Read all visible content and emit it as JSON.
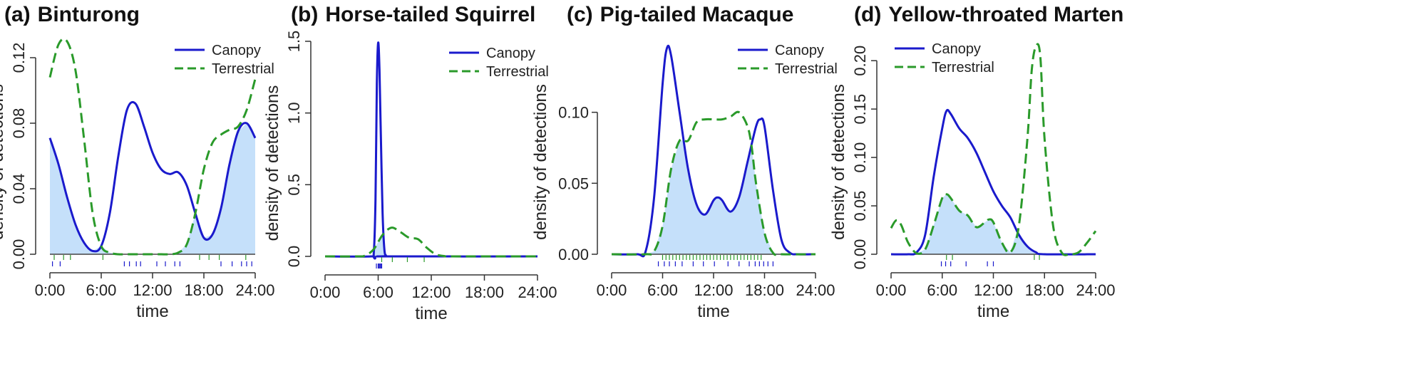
{
  "colors": {
    "canopy": "#1a1acc",
    "terrestrial": "#2a9a2a",
    "overlap": "#c5e0fa",
    "axis": "#333333",
    "baseline": "#444444"
  },
  "chart_data": [
    {
      "type": "line",
      "panel": "(a)",
      "title": "Binturong",
      "xlabel": "time",
      "ylabel": "density of detections",
      "xlim": [
        0,
        24
      ],
      "ylim": [
        0,
        0.13
      ],
      "x_ticks": [
        0,
        6,
        12,
        18,
        24
      ],
      "x_tick_labels": [
        "0:00",
        "6:00",
        "12:00",
        "18:00",
        "24:00"
      ],
      "y_ticks": [
        0,
        0.04,
        0.08,
        0.12
      ],
      "y_tick_labels": [
        "0.00",
        "0.04",
        "0.08",
        "0.12"
      ],
      "y_tick_rotated": true,
      "shade_overlap": true,
      "legend": [
        "Canopy",
        "Terrestrial"
      ],
      "series": [
        {
          "name": "Canopy",
          "style": "solid",
          "x": [
            0,
            1,
            2,
            3,
            4,
            5,
            6,
            7,
            8,
            9,
            10,
            11,
            12,
            13,
            14,
            15,
            16,
            17,
            18,
            19,
            20,
            21,
            22,
            23,
            24
          ],
          "y": [
            0.071,
            0.055,
            0.035,
            0.018,
            0.007,
            0.002,
            0.005,
            0.025,
            0.06,
            0.088,
            0.092,
            0.078,
            0.062,
            0.052,
            0.049,
            0.05,
            0.042,
            0.025,
            0.01,
            0.012,
            0.028,
            0.055,
            0.075,
            0.08,
            0.071
          ]
        },
        {
          "name": "Terrestrial",
          "style": "dashed",
          "x": [
            0,
            1,
            2,
            3,
            4,
            5,
            6,
            7,
            8,
            9,
            10,
            11,
            12,
            13,
            14,
            15,
            16,
            17,
            18,
            19,
            20,
            21,
            22,
            23,
            24
          ],
          "y": [
            0.108,
            0.128,
            0.13,
            0.112,
            0.07,
            0.025,
            0.005,
            0.001,
            0.0,
            0.0,
            0.0,
            0.0,
            0.0,
            0.0,
            0.0,
            0.001,
            0.006,
            0.025,
            0.052,
            0.068,
            0.073,
            0.076,
            0.078,
            0.088,
            0.107
          ]
        }
      ],
      "rug": [
        {
          "series": "Canopy",
          "x": [
            0.3,
            1.2,
            8.7,
            9.3,
            10.1,
            10.6,
            12.5,
            13.5,
            14.6,
            15.2,
            20.0,
            21.3,
            22.4,
            23.0,
            23.6
          ]
        },
        {
          "series": "Terrestrial",
          "x": [
            0.5,
            1.6,
            2.4,
            6.2,
            17.5,
            18.6,
            19.8,
            22.9
          ]
        }
      ]
    },
    {
      "type": "line",
      "panel": "(b)",
      "title": "Horse-tailed Squirrel",
      "xlabel": "time",
      "ylabel": "density of detections",
      "xlim": [
        0,
        24
      ],
      "ylim": [
        0,
        1.5
      ],
      "x_ticks": [
        0,
        6,
        12,
        18,
        24
      ],
      "x_tick_labels": [
        "0:00",
        "6:00",
        "12:00",
        "18:00",
        "24:00"
      ],
      "y_ticks": [
        0,
        0.5,
        1.0,
        1.5
      ],
      "y_tick_labels": [
        "0.0",
        "0.5",
        "1.0",
        "1.5"
      ],
      "y_tick_rotated": true,
      "shade_overlap": true,
      "legend": [
        "Canopy",
        "Terrestrial"
      ],
      "series": [
        {
          "name": "Canopy",
          "style": "solid",
          "x": [
            0,
            5.2,
            5.5,
            5.7,
            5.85,
            6.0,
            6.15,
            6.3,
            6.5,
            6.7,
            6.9,
            7.2,
            24
          ],
          "y": [
            0,
            0,
            0.02,
            0.4,
            1.2,
            1.49,
            1.3,
            0.85,
            0.3,
            0.05,
            0.005,
            0,
            0
          ]
        },
        {
          "name": "Terrestrial",
          "style": "dashed",
          "x": [
            0,
            3.5,
            4.5,
            5.5,
            6.5,
            7.5,
            8.5,
            9.5,
            10.5,
            11.5,
            12.5,
            13.5,
            14.5,
            24
          ],
          "y": [
            0,
            0,
            0.005,
            0.05,
            0.15,
            0.2,
            0.17,
            0.13,
            0.12,
            0.06,
            0.015,
            0.002,
            0,
            0
          ]
        }
      ],
      "rug": [
        {
          "series": "Canopy",
          "x": [
            5.8,
            6.0,
            6.1,
            6.2,
            6.3,
            6.4
          ]
        },
        {
          "series": "Terrestrial",
          "x": [
            6.4,
            7.6,
            9.3,
            11.2
          ]
        }
      ]
    },
    {
      "type": "line",
      "panel": "(c)",
      "title": "Pig-tailed Macaque",
      "xlabel": "time",
      "ylabel": "density of detections",
      "xlim": [
        0,
        24
      ],
      "ylim": [
        0,
        0.15
      ],
      "x_ticks": [
        0,
        6,
        12,
        18,
        24
      ],
      "x_tick_labels": [
        "0:00",
        "6:00",
        "12:00",
        "18:00",
        "24:00"
      ],
      "y_ticks": [
        0,
        0.05,
        0.1
      ],
      "y_tick_labels": [
        "0.00",
        "0.05",
        "0.10"
      ],
      "y_tick_rotated": false,
      "shade_overlap": true,
      "legend": [
        "Canopy",
        "Terrestrial"
      ],
      "series": [
        {
          "name": "Canopy",
          "style": "solid",
          "x": [
            0,
            3,
            4,
            5,
            6,
            6.5,
            7,
            8,
            9,
            10,
            11,
            12,
            12.5,
            13,
            14,
            15,
            16,
            17,
            17.5,
            18,
            19,
            20,
            21,
            22,
            24
          ],
          "y": [
            0,
            0,
            0.002,
            0.04,
            0.12,
            0.145,
            0.14,
            0.1,
            0.06,
            0.035,
            0.028,
            0.038,
            0.04,
            0.038,
            0.03,
            0.04,
            0.065,
            0.09,
            0.095,
            0.09,
            0.045,
            0.01,
            0.001,
            0,
            0
          ]
        },
        {
          "name": "Terrestrial",
          "style": "dashed",
          "x": [
            0,
            4,
            5,
            6,
            7,
            8,
            9,
            10,
            11,
            12,
            13,
            14,
            15,
            16,
            16.5,
            17,
            18,
            19,
            20,
            24
          ],
          "y": [
            0,
            0,
            0.002,
            0.02,
            0.06,
            0.08,
            0.08,
            0.093,
            0.095,
            0.095,
            0.095,
            0.097,
            0.1,
            0.09,
            0.075,
            0.05,
            0.015,
            0.001,
            0,
            0
          ]
        }
      ],
      "rug": [
        {
          "series": "Canopy",
          "x": [
            5.5,
            6.2,
            6.8,
            7.5,
            8.3,
            9.6,
            10.8,
            12.1,
            13.7,
            15.0,
            16.2,
            16.9,
            17.4,
            17.9,
            18.4,
            19.0
          ]
        },
        {
          "series": "Terrestrial",
          "x": [
            6.0,
            6.4,
            6.8,
            7.2,
            7.6,
            8.0,
            8.4,
            8.8,
            9.2,
            9.6,
            10.0,
            10.4,
            10.8,
            11.2,
            11.6,
            12.0,
            12.4,
            12.8,
            13.2,
            13.6,
            14.0,
            14.4,
            14.8,
            15.2,
            15.6,
            16.0,
            16.4,
            16.8,
            17.2,
            17.6
          ]
        }
      ]
    },
    {
      "type": "line",
      "panel": "(d)",
      "title": "Yellow-throated Marten",
      "xlabel": "time",
      "ylabel": "density of detections",
      "xlim": [
        0,
        24
      ],
      "ylim": [
        0,
        0.22
      ],
      "x_ticks": [
        0,
        6,
        12,
        18,
        24
      ],
      "x_tick_labels": [
        "0:00",
        "6:00",
        "12:00",
        "18:00",
        "24:00"
      ],
      "y_ticks": [
        0,
        0.05,
        0.1,
        0.15,
        0.2
      ],
      "y_tick_labels": [
        "0.00",
        "0.05",
        "0.10",
        "0.15",
        "0.20"
      ],
      "y_tick_rotated": true,
      "shade_overlap": true,
      "legend": [
        "Canopy",
        "Terrestrial"
      ],
      "series": [
        {
          "name": "Canopy",
          "style": "solid",
          "x": [
            0,
            2,
            3,
            4,
            5,
            6,
            6.5,
            7,
            8,
            9,
            10,
            11,
            12,
            13,
            14,
            15,
            16,
            17,
            18,
            24
          ],
          "y": [
            0,
            0,
            0.002,
            0.02,
            0.08,
            0.13,
            0.148,
            0.145,
            0.13,
            0.12,
            0.105,
            0.085,
            0.065,
            0.05,
            0.038,
            0.02,
            0.008,
            0.002,
            0,
            0
          ]
        },
        {
          "name": "Terrestrial",
          "style": "dashed",
          "x": [
            0,
            0.6,
            1.2,
            2,
            3,
            4,
            5,
            6,
            6.5,
            7,
            8,
            9,
            10,
            11,
            11.5,
            12,
            13,
            14,
            15,
            16,
            16.5,
            17,
            17.5,
            18,
            19,
            20,
            21,
            22,
            23,
            24
          ],
          "y": [
            0.027,
            0.035,
            0.03,
            0.012,
            0.001,
            0.005,
            0.03,
            0.058,
            0.062,
            0.058,
            0.045,
            0.04,
            0.028,
            0.033,
            0.036,
            0.033,
            0.012,
            0.002,
            0.03,
            0.12,
            0.19,
            0.215,
            0.205,
            0.12,
            0.03,
            0.002,
            0.0,
            0.002,
            0.012,
            0.024
          ]
        }
      ],
      "rug": [
        {
          "series": "Canopy",
          "x": [
            5.9,
            6.4,
            7.0,
            8.8,
            11.3,
            12.0
          ]
        },
        {
          "series": "Terrestrial",
          "x": [
            6.5,
            7.2,
            16.8,
            17.4
          ]
        }
      ]
    }
  ]
}
